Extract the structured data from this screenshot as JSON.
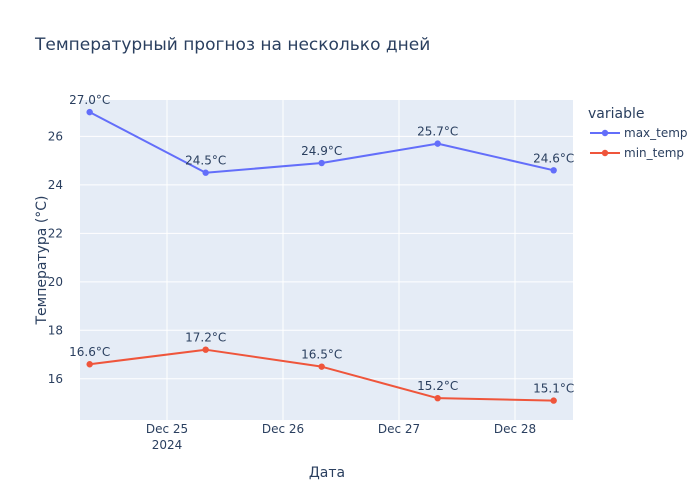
{
  "chart_data": {
    "type": "line",
    "title": "Температурный прогноз на несколько дней",
    "xlabel": "Дата",
    "ylabel": "Температура (°C)",
    "x": [
      "2024-12-24 08:00",
      "2024-12-25 08:00",
      "2024-12-26 08:00",
      "2024-12-27 08:00",
      "2024-12-28 08:00"
    ],
    "x_ticks": [
      {
        "date": "2024-12-25",
        "label": "Dec 25",
        "sublabel": "2024"
      },
      {
        "date": "2024-12-26",
        "label": "Dec 26",
        "sublabel": ""
      },
      {
        "date": "2024-12-27",
        "label": "Dec 27",
        "sublabel": ""
      },
      {
        "date": "2024-12-28",
        "label": "Dec 28",
        "sublabel": ""
      }
    ],
    "xlim": [
      "2024-12-24 06:00",
      "2024-12-28 12:00"
    ],
    "ylim": [
      14.3,
      27.5
    ],
    "y_ticks": [
      16,
      18,
      20,
      22,
      24,
      26
    ],
    "grid": true,
    "legend_title": "variable",
    "legend_position": "top-right",
    "series": [
      {
        "name": "max_temp",
        "color": "#636efa",
        "values": [
          27.0,
          24.5,
          24.9,
          25.7,
          24.6
        ],
        "labels": [
          "27.0°C",
          "24.5°C",
          "24.9°C",
          "25.7°C",
          "24.6°C"
        ]
      },
      {
        "name": "min_temp",
        "color": "#ef553b",
        "values": [
          16.6,
          17.2,
          16.5,
          15.2,
          15.1
        ],
        "labels": [
          "16.6°C",
          "17.2°C",
          "16.5°C",
          "15.2°C",
          "15.1°C"
        ]
      }
    ],
    "colors": {
      "plot_background": "#e5ecf6",
      "grid": "#ffffff",
      "text": "#2a3f5f"
    }
  }
}
